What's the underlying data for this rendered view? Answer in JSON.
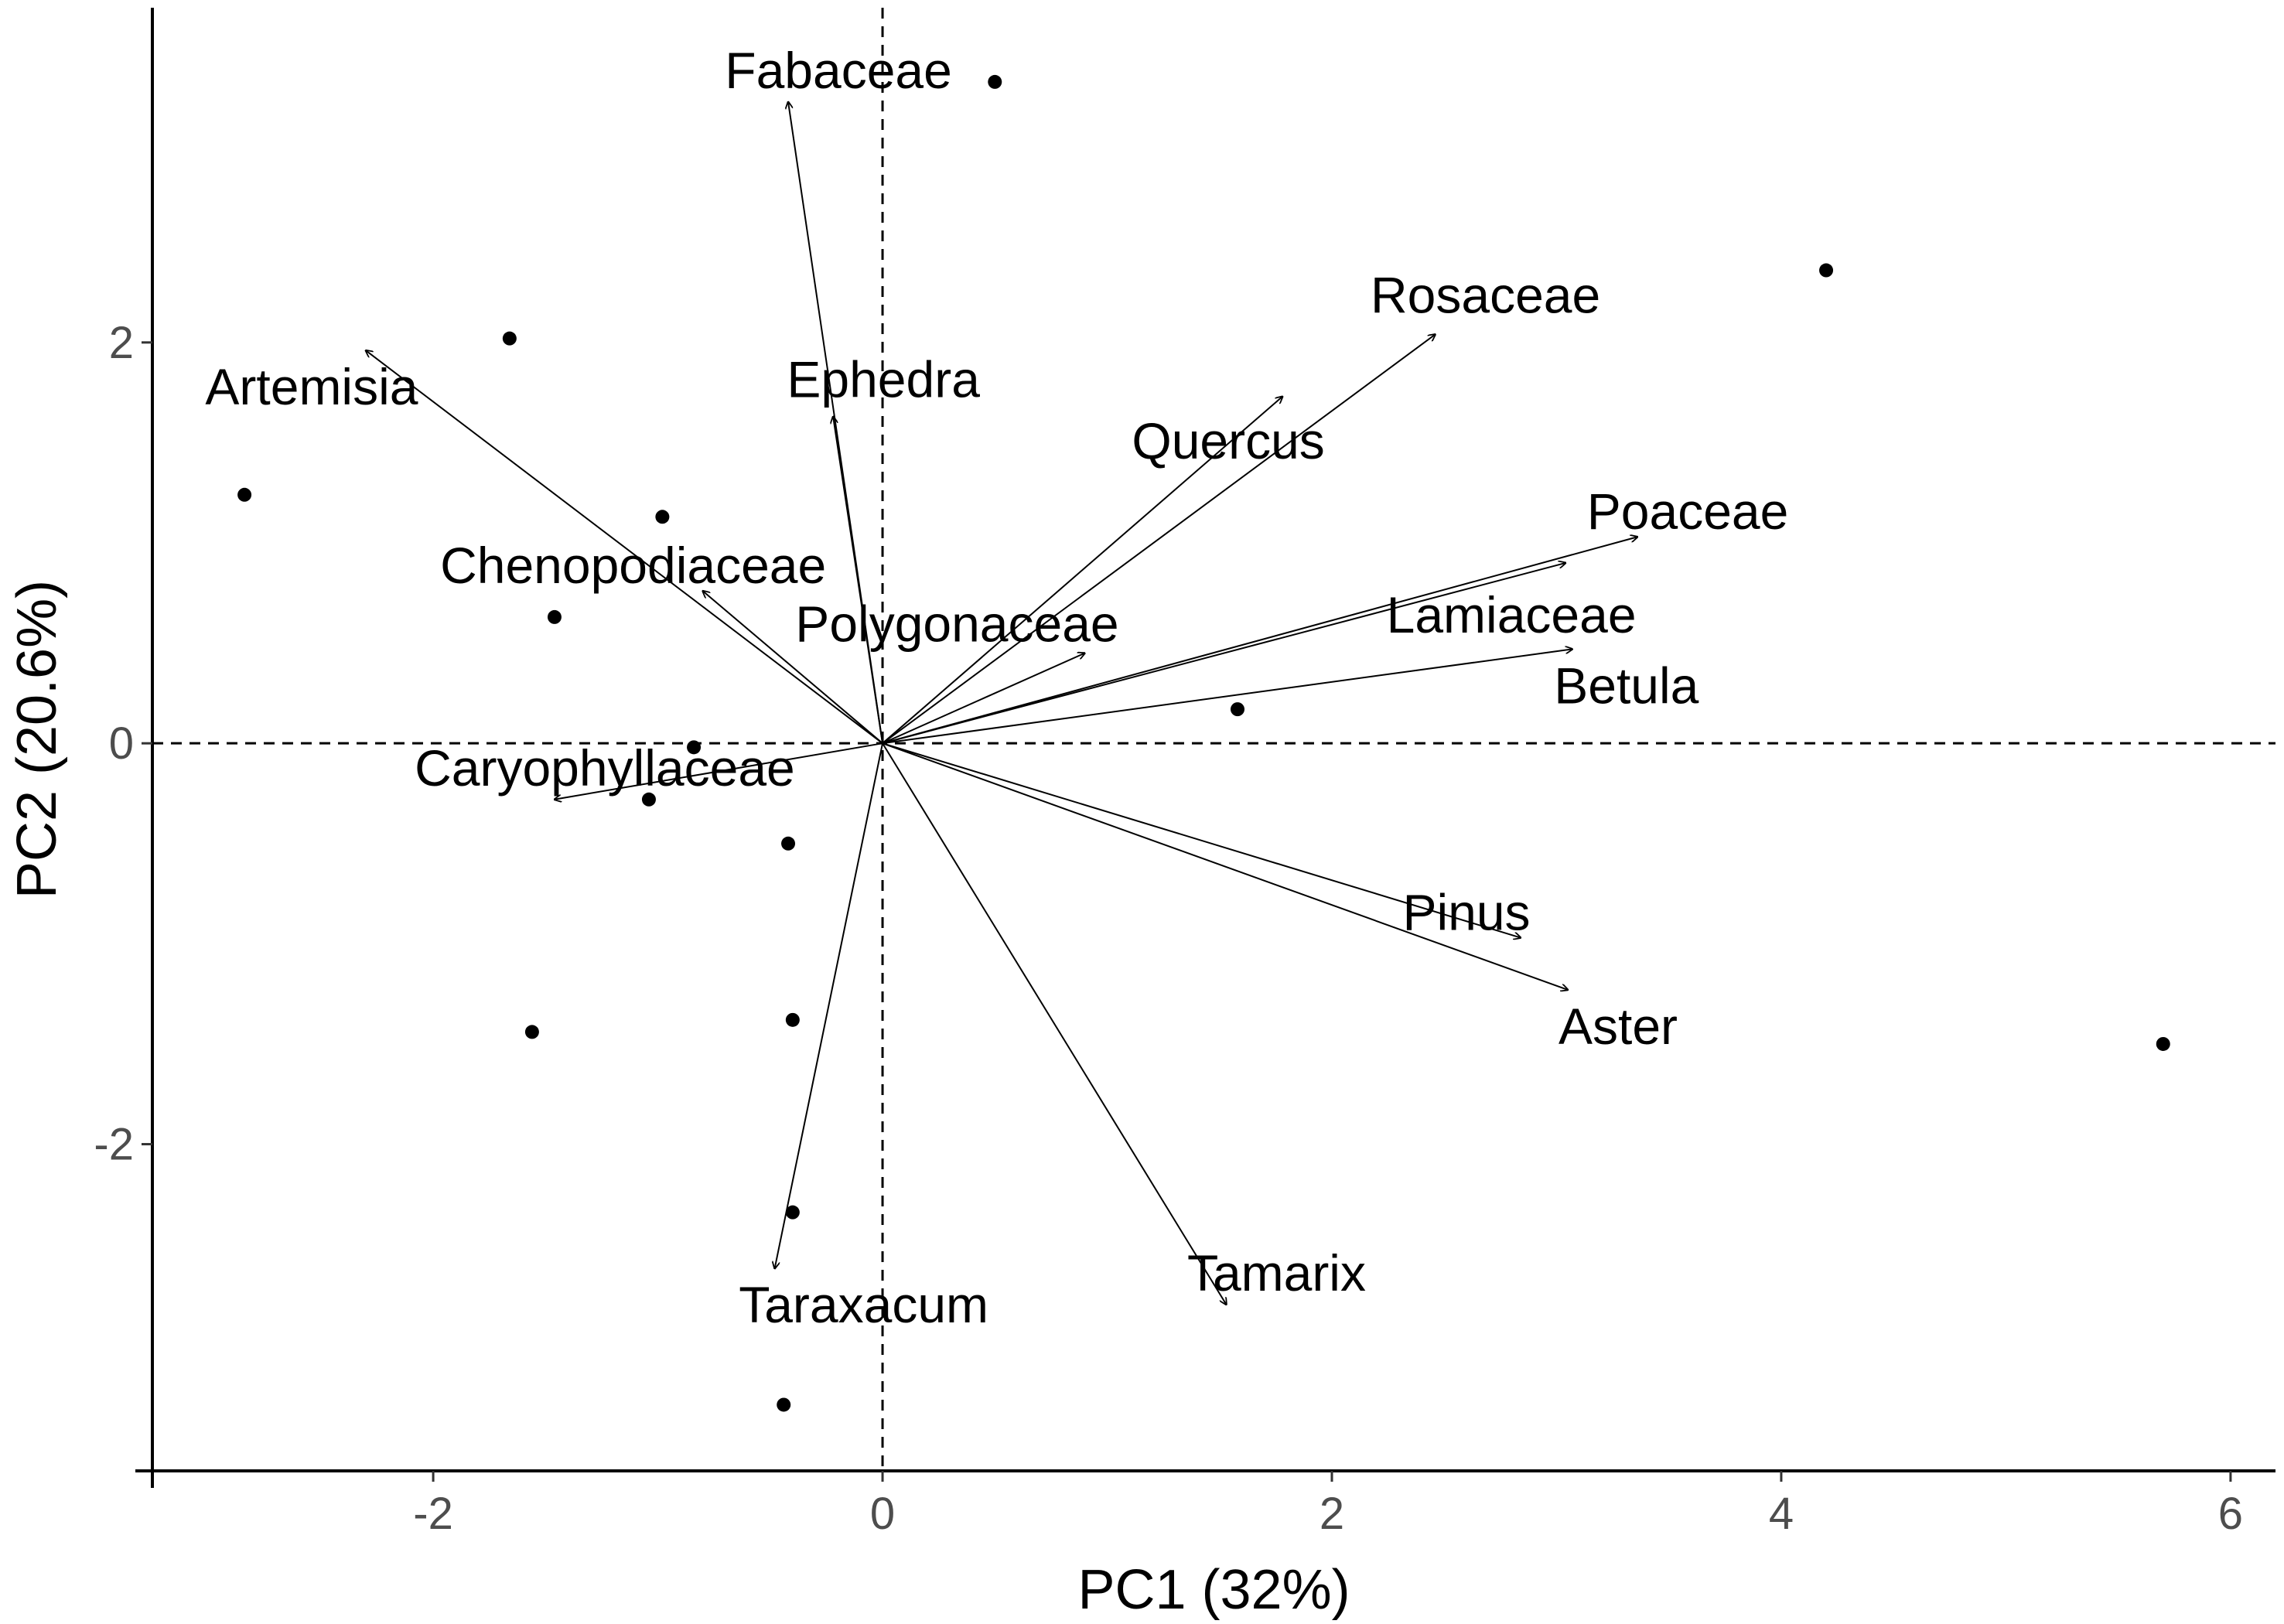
{
  "chart_data": {
    "type": "scatter",
    "subtype": "pca-biplot",
    "xlabel": "PC1 (32%)",
    "ylabel": "PC2 (20.6%)",
    "xlim": [
      -3.25,
      6.2
    ],
    "ylim": [
      -3.63,
      3.67
    ],
    "x_ticks": [
      -2,
      0,
      2,
      4,
      6
    ],
    "y_ticks": [
      -2,
      0,
      2
    ],
    "reference_lines": {
      "x": 0,
      "y": 0,
      "style": "dashed"
    },
    "grid": false,
    "legend": "none",
    "scores": [
      {
        "x": 0.5,
        "y": 3.3
      },
      {
        "x": -1.66,
        "y": 2.02
      },
      {
        "x": 4.2,
        "y": 2.36
      },
      {
        "x": -2.84,
        "y": 1.24
      },
      {
        "x": -0.98,
        "y": 1.13
      },
      {
        "x": -1.46,
        "y": 0.63
      },
      {
        "x": 1.58,
        "y": 0.17
      },
      {
        "x": -0.84,
        "y": -0.02
      },
      {
        "x": -1.04,
        "y": -0.28
      },
      {
        "x": -0.42,
        "y": -0.5
      },
      {
        "x": -1.56,
        "y": -1.44
      },
      {
        "x": -0.4,
        "y": -1.38
      },
      {
        "x": 5.7,
        "y": -1.5
      },
      {
        "x": -0.4,
        "y": -2.34
      },
      {
        "x": -0.44,
        "y": -3.3
      }
    ],
    "loadings": [
      {
        "label": "Fabaceae",
        "x": -0.42,
        "y": 3.2
      },
      {
        "label": "Artemisia",
        "x": -2.3,
        "y": 1.96
      },
      {
        "label": "Ephedra",
        "x": -0.22,
        "y": 1.63
      },
      {
        "label": "Chenopodiaceae",
        "x": -0.8,
        "y": 0.76
      },
      {
        "label": "Caryophyllaceae",
        "x": -1.46,
        "y": -0.28
      },
      {
        "label": "Taraxacum",
        "x": -0.48,
        "y": -2.62
      },
      {
        "label": "Rosaceae",
        "x": 2.46,
        "y": 2.04
      },
      {
        "label": "Quercus",
        "x": 1.78,
        "y": 1.73
      },
      {
        "label": "Poaceae",
        "x": 3.36,
        "y": 1.03
      },
      {
        "label": "Lamiaceae",
        "x": 3.04,
        "y": 0.9
      },
      {
        "label": "Polygonaceae",
        "x": 0.9,
        "y": 0.45
      },
      {
        "label": "Betula",
        "x": 3.07,
        "y": 0.47
      },
      {
        "label": "Pinus",
        "x": 2.84,
        "y": -0.97
      },
      {
        "label": "Aster",
        "x": 3.05,
        "y": -1.23
      },
      {
        "label": "Tamarix",
        "x": 1.53,
        "y": -2.8
      }
    ]
  }
}
